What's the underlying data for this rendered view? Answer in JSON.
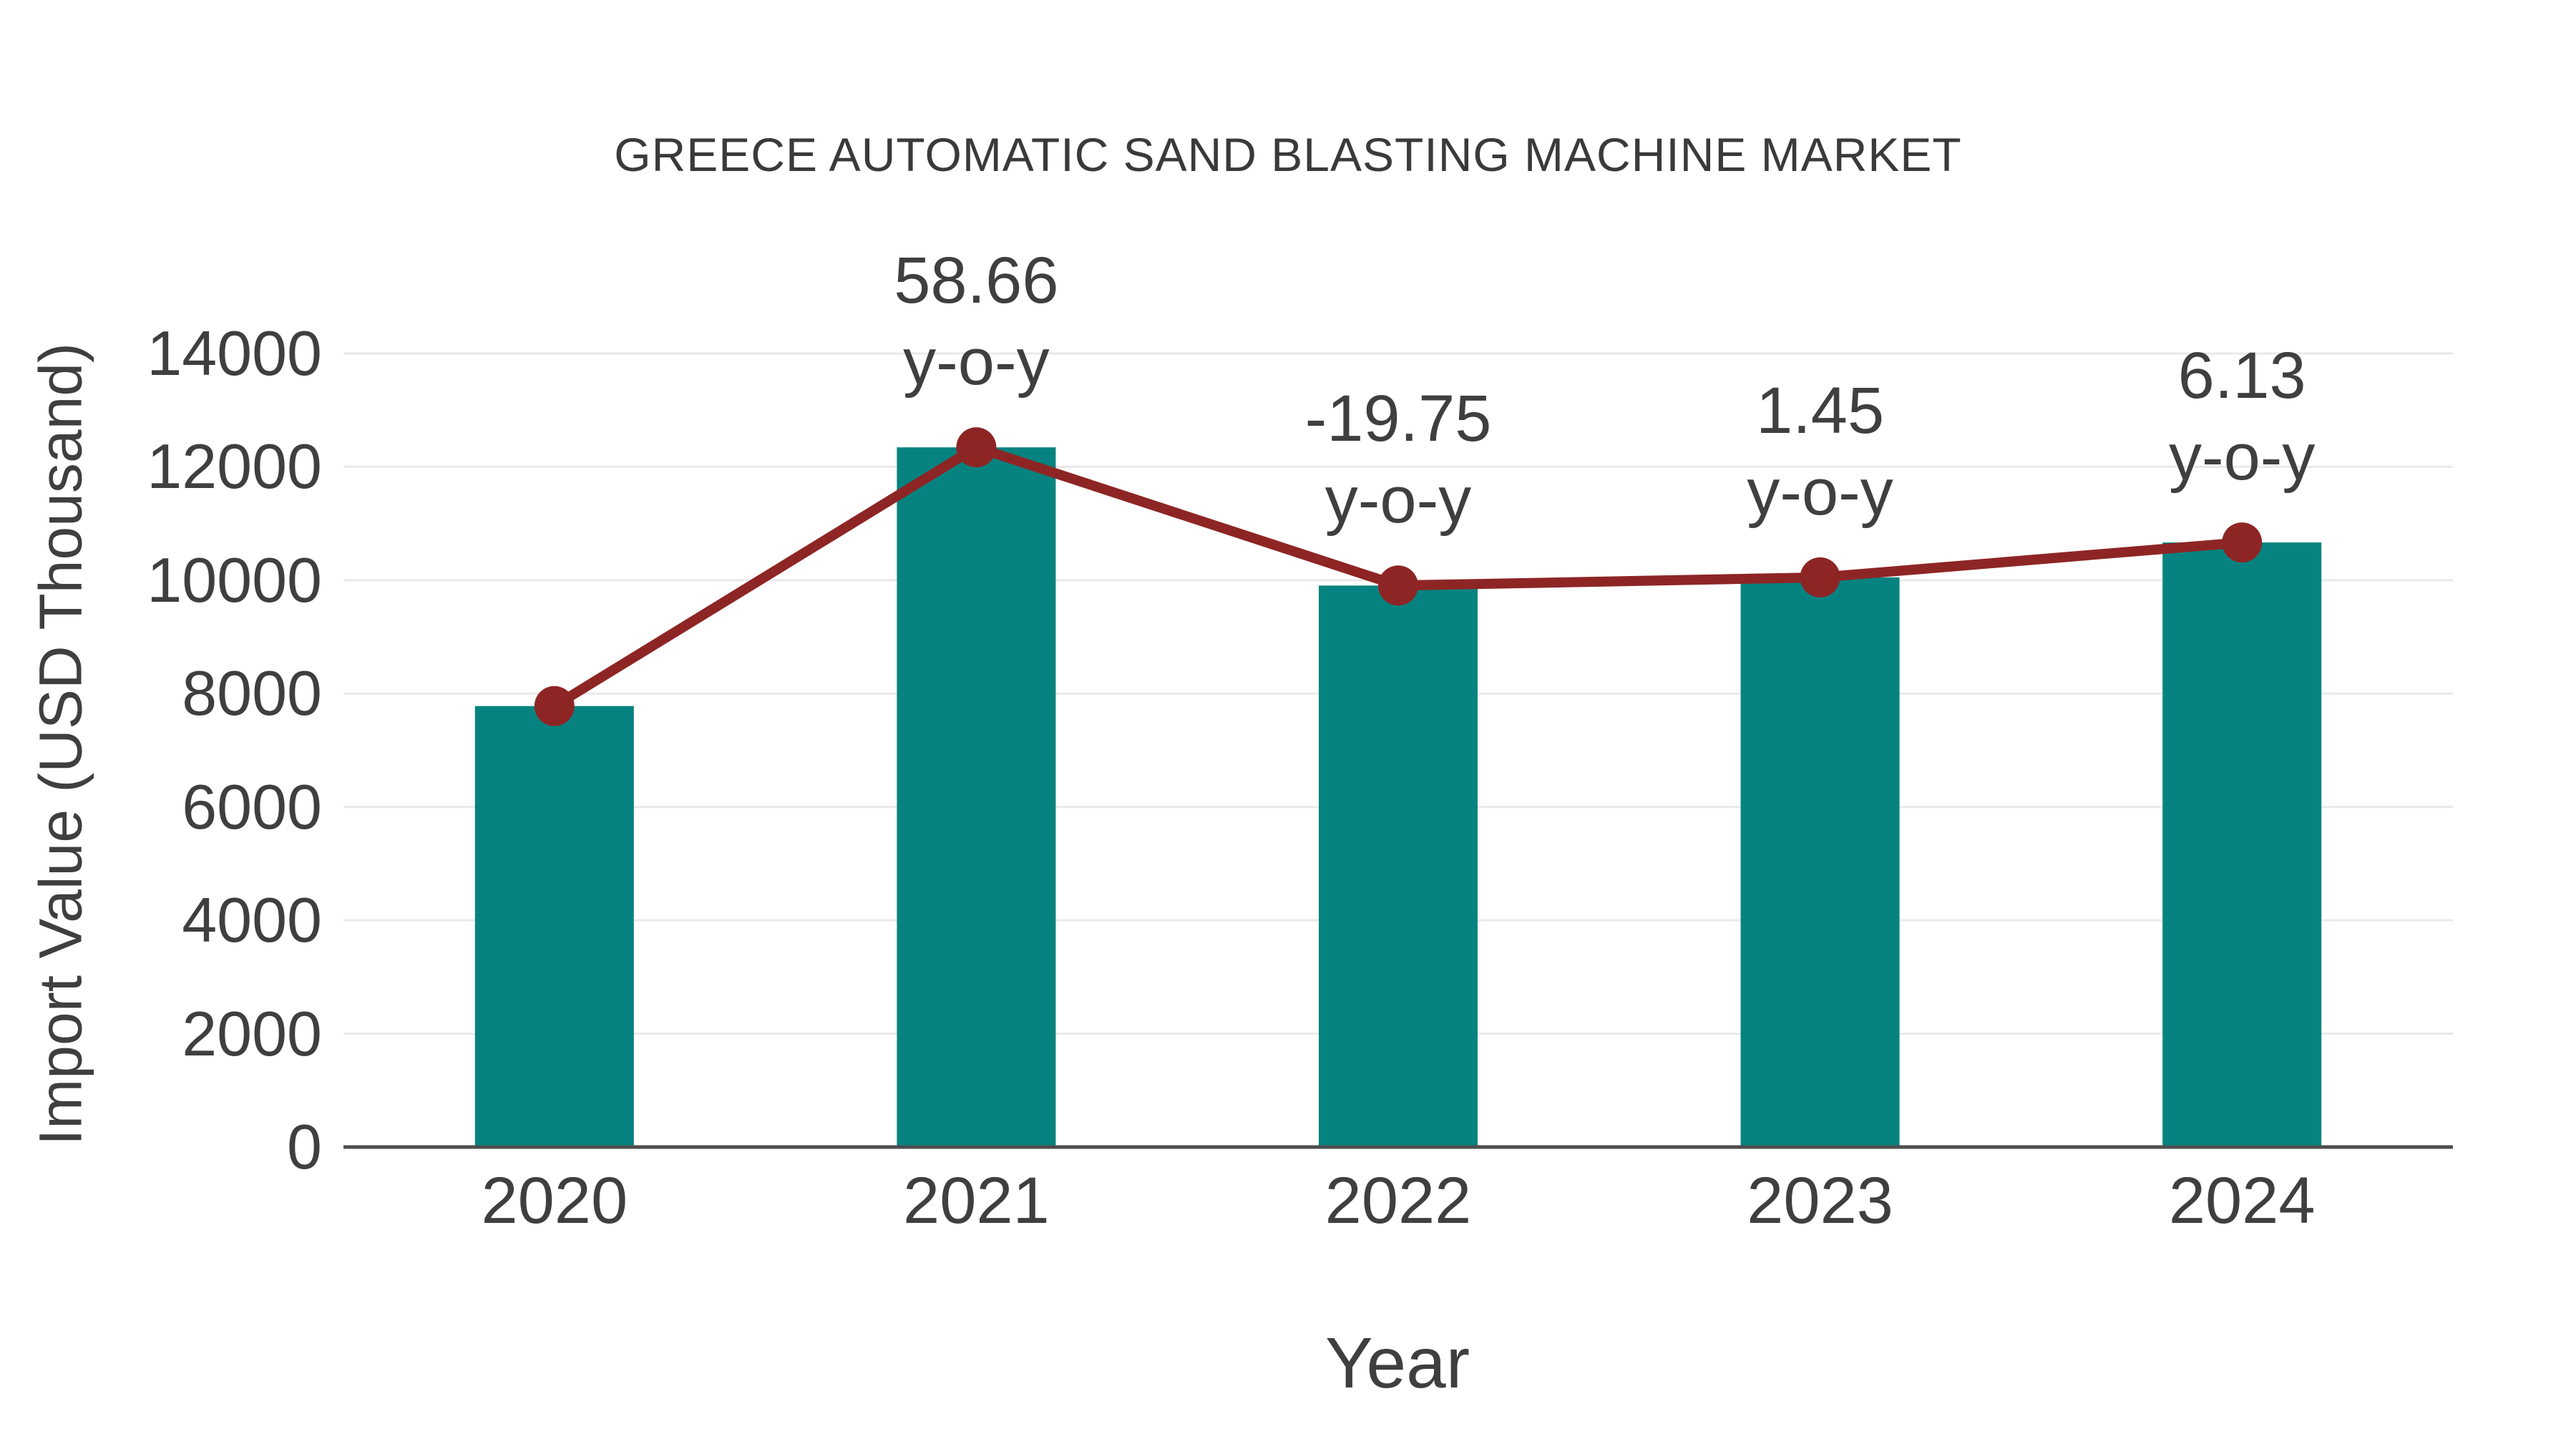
{
  "chart": {
    "title": "GREECE AUTOMATIC SAND BLASTING MACHINE MARKET",
    "x_axis_title": "Year",
    "y_axis_title": "Import Value (USD Thousand)"
  },
  "colors": {
    "bar": "#068380",
    "line": "#8e2525",
    "marker": "#8e2525",
    "grid": "#e9e9e9",
    "axis_line": "#4d4d4d",
    "text": "#3f3f3f"
  },
  "chart_data": {
    "type": "bar",
    "title": "GREECE AUTOMATIC SAND BLASTING MACHINE MARKET",
    "xlabel": "Year",
    "ylabel": "Import Value (USD Thousand)",
    "categories": [
      "2020",
      "2021",
      "2022",
      "2023",
      "2024"
    ],
    "series": [
      {
        "name": "Import Value",
        "type": "bar",
        "values": [
          7780,
          12344,
          9906,
          10050,
          10666
        ]
      },
      {
        "name": "y-o-y trend",
        "type": "line",
        "values": [
          7780,
          12344,
          9906,
          10050,
          10666
        ]
      }
    ],
    "annotations": [
      {
        "category": "2021",
        "value": "58.66",
        "suffix": "y-o-y"
      },
      {
        "category": "2022",
        "value": "-19.75",
        "suffix": "y-o-y"
      },
      {
        "category": "2023",
        "value": "1.45",
        "suffix": "y-o-y"
      },
      {
        "category": "2024",
        "value": "6.13",
        "suffix": "y-o-y"
      }
    ],
    "ylim": [
      0,
      14000
    ],
    "yticks": [
      0,
      2000,
      4000,
      6000,
      8000,
      10000,
      12000,
      14000
    ],
    "grid": true,
    "legend": false
  }
}
